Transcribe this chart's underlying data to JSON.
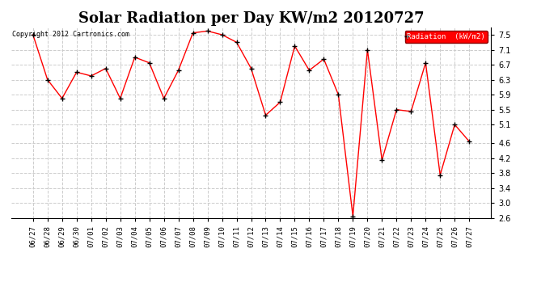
{
  "title": "Solar Radiation per Day KW/m2 20120727",
  "copyright_text": "Copyright 2012 Cartronics.com",
  "legend_label": "Radiation  (kW/m2)",
  "dates": [
    "06/27",
    "06/28",
    "06/29",
    "06/30",
    "07/01",
    "07/02",
    "07/03",
    "07/04",
    "07/05",
    "07/06",
    "07/07",
    "07/08",
    "07/09",
    "07/10",
    "07/11",
    "07/12",
    "07/13",
    "07/14",
    "07/15",
    "07/16",
    "07/17",
    "07/18",
    "07/19",
    "07/20",
    "07/21",
    "07/22",
    "07/23",
    "07/24",
    "07/25",
    "07/26",
    "07/27"
  ],
  "values": [
    7.5,
    6.3,
    5.8,
    6.5,
    6.4,
    6.6,
    5.8,
    6.9,
    6.75,
    5.8,
    6.55,
    7.55,
    7.6,
    7.5,
    7.3,
    6.6,
    5.35,
    5.7,
    7.2,
    6.55,
    6.85,
    5.9,
    2.65,
    7.1,
    4.15,
    5.5,
    5.45,
    6.75,
    3.75,
    5.1,
    4.65
  ],
  "line_color": "red",
  "marker_color": "black",
  "bg_color": "#ffffff",
  "grid_color": "#cccccc",
  "ylim": [
    2.6,
    7.7
  ],
  "yticks": [
    2.6,
    3.0,
    3.4,
    3.8,
    4.2,
    4.6,
    5.1,
    5.5,
    5.9,
    6.3,
    6.7,
    7.1,
    7.5
  ],
  "title_fontsize": 13,
  "legend_bg": "#ff0000",
  "legend_text_color": "#ffffff"
}
